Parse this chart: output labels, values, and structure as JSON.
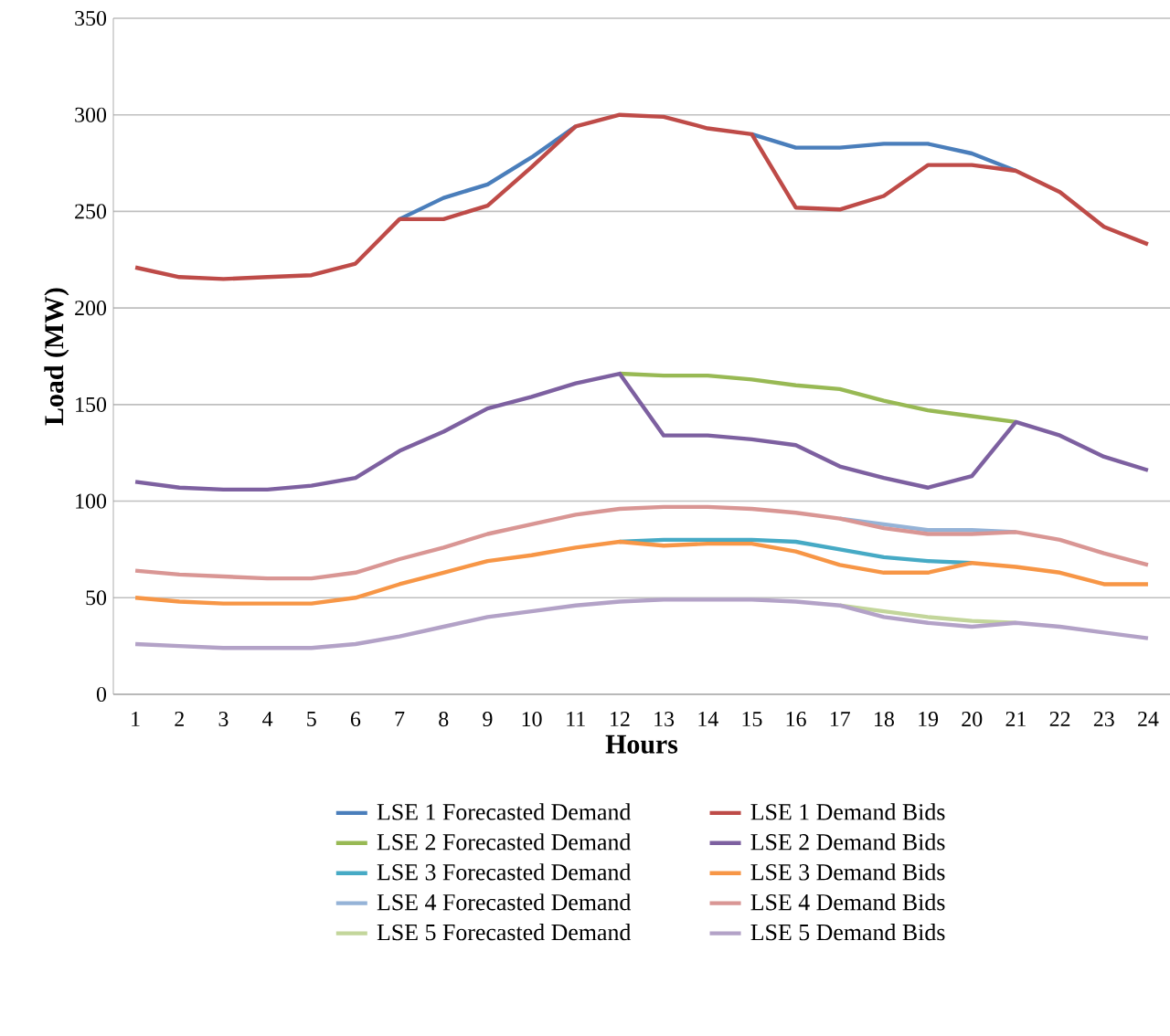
{
  "chart_data": {
    "type": "line",
    "xlabel": "Hours",
    "ylabel": "Load (MW)",
    "categories": [
      "1",
      "2",
      "3",
      "4",
      "5",
      "6",
      "7",
      "8",
      "9",
      "10",
      "11",
      "12",
      "13",
      "14",
      "15",
      "16",
      "17",
      "18",
      "19",
      "20",
      "21",
      "22",
      "23",
      "24"
    ],
    "ylim": [
      0,
      350
    ],
    "yticks": [
      0,
      50,
      100,
      150,
      200,
      250,
      300,
      350
    ],
    "grid": "y",
    "legend": "bottom",
    "marker": "none",
    "line_style": "solid",
    "series": [
      {
        "name": "LSE 1 Forecasted Demand",
        "color": "#4a7ebb",
        "values": [
          null,
          null,
          null,
          null,
          null,
          null,
          246,
          257,
          264,
          278,
          294,
          null,
          null,
          null,
          290,
          283,
          283,
          285,
          285,
          280,
          271,
          null,
          null,
          null
        ]
      },
      {
        "name": "LSE 1 Demand Bids",
        "color": "#be4b48",
        "values": [
          221,
          216,
          215,
          216,
          217,
          223,
          246,
          246,
          253,
          273,
          294,
          300,
          299,
          293,
          290,
          252,
          251,
          258,
          274,
          274,
          271,
          260,
          242,
          233
        ]
      },
      {
        "name": "LSE 2 Forecasted Demand",
        "color": "#98b954",
        "values": [
          null,
          null,
          null,
          null,
          null,
          null,
          null,
          null,
          null,
          null,
          null,
          166,
          165,
          165,
          163,
          160,
          158,
          152,
          147,
          144,
          141,
          null,
          null,
          null
        ]
      },
      {
        "name": "LSE 2 Demand Bids",
        "color": "#7d60a0",
        "values": [
          110,
          107,
          106,
          106,
          108,
          112,
          126,
          136,
          148,
          154,
          161,
          166,
          134,
          134,
          132,
          129,
          118,
          112,
          107,
          113,
          141,
          134,
          123,
          116
        ]
      },
      {
        "name": "LSE 3 Forecasted Demand",
        "color": "#46aac5",
        "values": [
          null,
          null,
          null,
          null,
          null,
          null,
          null,
          null,
          null,
          null,
          null,
          79,
          80,
          80,
          80,
          79,
          75,
          71,
          69,
          68,
          null,
          null,
          null,
          null
        ]
      },
      {
        "name": "LSE 3 Demand Bids",
        "color": "#f79646",
        "values": [
          50,
          48,
          47,
          47,
          47,
          50,
          57,
          63,
          69,
          72,
          76,
          79,
          77,
          78,
          78,
          74,
          67,
          63,
          63,
          68,
          66,
          63,
          57,
          57
        ]
      },
      {
        "name": "LSE 4 Forecasted Demand",
        "color": "#95b3d7",
        "values": [
          null,
          null,
          null,
          null,
          null,
          null,
          null,
          null,
          null,
          null,
          null,
          null,
          null,
          null,
          null,
          null,
          91,
          88,
          85,
          85,
          84,
          null,
          null,
          null
        ]
      },
      {
        "name": "LSE 4 Demand Bids",
        "color": "#d99694",
        "values": [
          64,
          62,
          61,
          60,
          60,
          63,
          70,
          76,
          83,
          88,
          93,
          96,
          97,
          97,
          96,
          94,
          91,
          86,
          83,
          83,
          84,
          80,
          73,
          67
        ]
      },
      {
        "name": "LSE 5 Forecasted Demand",
        "color": "#c3d69b",
        "values": [
          null,
          null,
          null,
          null,
          null,
          null,
          null,
          null,
          null,
          null,
          null,
          null,
          null,
          null,
          null,
          null,
          46,
          43,
          40,
          38,
          37,
          null,
          null,
          null
        ]
      },
      {
        "name": "LSE 5 Demand Bids",
        "color": "#b3a2c7",
        "values": [
          26,
          25,
          24,
          24,
          24,
          26,
          30,
          35,
          40,
          43,
          46,
          48,
          49,
          49,
          49,
          48,
          46,
          40,
          37,
          35,
          37,
          35,
          32,
          29
        ]
      }
    ]
  }
}
